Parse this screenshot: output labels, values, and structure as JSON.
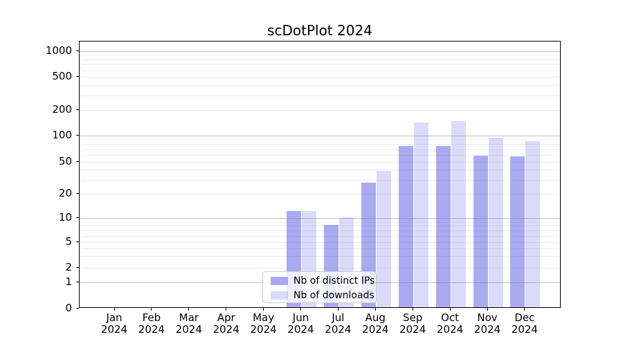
{
  "chart_data": {
    "type": "bar",
    "title": "scDotPlot 2024",
    "categories": [
      {
        "month": "Jan",
        "year": "2024"
      },
      {
        "month": "Feb",
        "year": "2024"
      },
      {
        "month": "Mar",
        "year": "2024"
      },
      {
        "month": "Apr",
        "year": "2024"
      },
      {
        "month": "May",
        "year": "2024"
      },
      {
        "month": "Jun",
        "year": "2024"
      },
      {
        "month": "Jul",
        "year": "2024"
      },
      {
        "month": "Aug",
        "year": "2024"
      },
      {
        "month": "Sep",
        "year": "2024"
      },
      {
        "month": "Oct",
        "year": "2024"
      },
      {
        "month": "Nov",
        "year": "2024"
      },
      {
        "month": "Dec",
        "year": "2024"
      }
    ],
    "series": [
      {
        "id": "distinct-ips",
        "name": "Nb of distinct IPs",
        "color_hex": "#a9a9f1",
        "color_rgba": "rgba(100,100,230,0.55)",
        "values": [
          0,
          0,
          0,
          0,
          0,
          12,
          8,
          27,
          74,
          74,
          57,
          56
        ]
      },
      {
        "id": "downloads",
        "name": "Nb of downloads",
        "color_hex": "#dcdcf7",
        "color_rgba": "rgba(100,100,230,0.23)",
        "values": [
          0,
          0,
          0,
          0,
          0,
          12,
          10,
          37,
          140,
          145,
          93,
          85
        ]
      }
    ],
    "y_ticks": [
      0,
      1,
      2,
      5,
      10,
      20,
      50,
      100,
      200,
      500,
      1000
    ],
    "y_scale": "symlog",
    "ylim": [
      0,
      1300
    ],
    "xlabel": "",
    "ylabel": "",
    "grid": "horizontal major+minor",
    "legend_position": "lower-center"
  }
}
